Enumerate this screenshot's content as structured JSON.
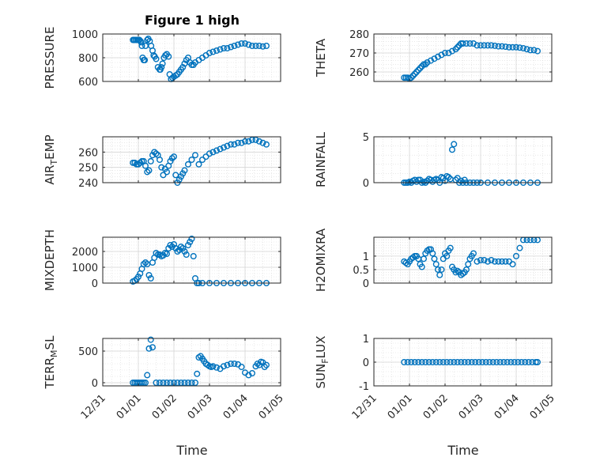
{
  "figure": {
    "title": "Figure 1 high",
    "marker_color": "#0072bd",
    "x_label": "Time"
  },
  "x_ticks": [
    "12/31",
    "01/01",
    "01/02",
    "01/03",
    "01/04",
    "01/05"
  ],
  "chart_data": [
    {
      "type": "scatter",
      "ylabel": "PRESSURE",
      "ylim": [
        600,
        1000
      ],
      "yticks": [
        600,
        800,
        1000
      ],
      "x": [
        0.85,
        0.88,
        0.92,
        0.96,
        1.0,
        1.03,
        1.06,
        1.08,
        1.1,
        1.12,
        1.15,
        1.18,
        1.2,
        1.25,
        1.28,
        1.32,
        1.36,
        1.4,
        1.43,
        1.46,
        1.5,
        1.55,
        1.6,
        1.62,
        1.65,
        1.68,
        1.72,
        1.76,
        1.8,
        1.85,
        1.88,
        1.92,
        1.96,
        2.0,
        2.05,
        2.1,
        2.15,
        2.2,
        2.25,
        2.3,
        2.35,
        2.4,
        2.45,
        2.5,
        2.55,
        2.6,
        2.7,
        2.8,
        2.9,
        3.0,
        3.1,
        3.2,
        3.3,
        3.4,
        3.5,
        3.6,
        3.7,
        3.8,
        3.9,
        4.0,
        4.1,
        4.2,
        4.3,
        4.4,
        4.5,
        4.6
      ],
      "values": [
        950,
        950,
        950,
        950,
        950,
        950,
        940,
        930,
        900,
        800,
        780,
        780,
        900,
        950,
        960,
        940,
        900,
        860,
        820,
        810,
        790,
        720,
        700,
        700,
        720,
        750,
        800,
        820,
        830,
        810,
        660,
        620,
        630,
        640,
        650,
        660,
        680,
        700,
        720,
        750,
        780,
        800,
        760,
        740,
        740,
        760,
        780,
        800,
        820,
        840,
        850,
        860,
        870,
        880,
        880,
        890,
        900,
        910,
        920,
        920,
        910,
        900,
        900,
        900,
        895,
        900
      ]
    },
    {
      "type": "scatter",
      "ylabel": "THETA",
      "ylim": [
        255,
        280
      ],
      "yticks": [
        260,
        270,
        280
      ],
      "x": [
        0.85,
        0.9,
        0.95,
        1.0,
        1.05,
        1.1,
        1.15,
        1.2,
        1.25,
        1.3,
        1.35,
        1.4,
        1.45,
        1.5,
        1.6,
        1.7,
        1.8,
        1.9,
        2.0,
        2.1,
        2.2,
        2.3,
        2.35,
        2.4,
        2.45,
        2.5,
        2.6,
        2.7,
        2.8,
        2.9,
        3.0,
        3.1,
        3.2,
        3.3,
        3.4,
        3.5,
        3.6,
        3.7,
        3.8,
        3.9,
        4.0,
        4.1,
        4.2,
        4.3,
        4.4,
        4.5,
        4.6
      ],
      "values": [
        257,
        257,
        257,
        256.5,
        257,
        258,
        259,
        260,
        261,
        262,
        263,
        264,
        264,
        265,
        266,
        267,
        268,
        269,
        270,
        270,
        271,
        272,
        273,
        274,
        275,
        275,
        275,
        275,
        275,
        274,
        274,
        274,
        274,
        274,
        273.8,
        273.5,
        273.5,
        273.3,
        273,
        273,
        273,
        272.8,
        272.5,
        272,
        271.5,
        271.5,
        271
      ]
    },
    {
      "type": "scatter",
      "ylabel": "AIR_TEMP",
      "ylim": [
        240,
        270
      ],
      "yticks": [
        240,
        250,
        260
      ],
      "x": [
        0.85,
        0.9,
        0.95,
        1.0,
        1.05,
        1.1,
        1.15,
        1.2,
        1.25,
        1.3,
        1.35,
        1.4,
        1.45,
        1.5,
        1.55,
        1.6,
        1.65,
        1.7,
        1.75,
        1.8,
        1.85,
        1.9,
        1.95,
        2.0,
        2.05,
        2.1,
        2.15,
        2.2,
        2.25,
        2.3,
        2.4,
        2.5,
        2.6,
        2.7,
        2.8,
        2.9,
        3.0,
        3.1,
        3.2,
        3.3,
        3.4,
        3.5,
        3.6,
        3.7,
        3.8,
        3.9,
        4.0,
        4.1,
        4.2,
        4.3,
        4.4,
        4.5,
        4.6
      ],
      "values": [
        253,
        253,
        252,
        252,
        253,
        254,
        254,
        251,
        247,
        248,
        254,
        258,
        260,
        259,
        258,
        255,
        250,
        245,
        249,
        247,
        251,
        254,
        256,
        257,
        245,
        240,
        242,
        244,
        246,
        248,
        252,
        255,
        258,
        252,
        255,
        257,
        259,
        260,
        261,
        262,
        263,
        264,
        265,
        265,
        266,
        266,
        267,
        267,
        268,
        268,
        267,
        266,
        265
      ]
    },
    {
      "type": "scatter",
      "ylabel": "RAINFALL",
      "ylim": [
        0,
        5
      ],
      "yticks": [
        0,
        5
      ],
      "x": [
        0.85,
        0.9,
        0.95,
        1.0,
        1.05,
        1.1,
        1.15,
        1.2,
        1.25,
        1.3,
        1.35,
        1.4,
        1.45,
        1.5,
        1.55,
        1.6,
        1.65,
        1.7,
        1.75,
        1.8,
        1.85,
        1.9,
        1.95,
        2.0,
        2.05,
        2.1,
        2.15,
        2.2,
        2.25,
        2.3,
        2.35,
        2.4,
        2.45,
        2.5,
        2.55,
        2.6,
        2.7,
        2.8,
        2.9,
        3.0,
        3.2,
        3.4,
        3.6,
        3.8,
        4.0,
        4.2,
        4.4,
        4.6
      ],
      "values": [
        0,
        0,
        0,
        0.1,
        0,
        0.2,
        0.3,
        0.1,
        0.3,
        0.3,
        0,
        0.1,
        0,
        0.2,
        0.4,
        0.3,
        0.1,
        0.3,
        0.4,
        0.3,
        0,
        0.6,
        0.5,
        0.2,
        0.7,
        0.6,
        0.4,
        3.6,
        4.2,
        0.3,
        0.5,
        0,
        0.2,
        0,
        0.3,
        0,
        0,
        0,
        0,
        0,
        0,
        0,
        0,
        0,
        0,
        0,
        0,
        0
      ]
    },
    {
      "type": "scatter",
      "ylabel": "MIXDEPTH",
      "ylim": [
        0,
        2900
      ],
      "yticks": [
        0,
        1000,
        2000
      ],
      "x": [
        0.85,
        0.9,
        0.95,
        1.0,
        1.05,
        1.1,
        1.15,
        1.2,
        1.25,
        1.3,
        1.35,
        1.4,
        1.45,
        1.5,
        1.55,
        1.6,
        1.65,
        1.7,
        1.75,
        1.8,
        1.85,
        1.9,
        1.95,
        2.0,
        2.05,
        2.1,
        2.15,
        2.2,
        2.25,
        2.3,
        2.35,
        2.4,
        2.45,
        2.5,
        2.55,
        2.6,
        2.65,
        2.7,
        2.8,
        3.0,
        3.2,
        3.4,
        3.6,
        3.8,
        4.0,
        4.2,
        4.4,
        4.6
      ],
      "values": [
        100,
        150,
        250,
        400,
        600,
        900,
        1200,
        1300,
        1200,
        500,
        300,
        1300,
        1600,
        1900,
        1800,
        1800,
        1700,
        1750,
        1900,
        1850,
        2200,
        2400,
        2300,
        2450,
        2200,
        2000,
        2100,
        2300,
        2200,
        2000,
        1800,
        2400,
        2600,
        2800,
        1700,
        300,
        0,
        0,
        0,
        0,
        0,
        0,
        0,
        0,
        0,
        0,
        0,
        0
      ]
    },
    {
      "type": "scatter",
      "ylabel": "H2OMIXRA",
      "ylim": [
        0,
        1.7
      ],
      "yticks": [
        0,
        0.5,
        1
      ],
      "x": [
        0.85,
        0.9,
        0.95,
        1.0,
        1.05,
        1.1,
        1.15,
        1.2,
        1.25,
        1.3,
        1.35,
        1.4,
        1.45,
        1.5,
        1.55,
        1.6,
        1.65,
        1.7,
        1.75,
        1.8,
        1.85,
        1.9,
        1.95,
        2.0,
        2.05,
        2.1,
        2.15,
        2.2,
        2.25,
        2.3,
        2.35,
        2.4,
        2.45,
        2.5,
        2.55,
        2.6,
        2.65,
        2.7,
        2.75,
        2.8,
        2.9,
        3.0,
        3.1,
        3.2,
        3.3,
        3.4,
        3.5,
        3.6,
        3.7,
        3.8,
        3.9,
        4.0,
        4.1,
        4.2,
        4.3,
        4.4,
        4.5,
        4.6
      ],
      "values": [
        0.8,
        0.75,
        0.7,
        0.8,
        0.9,
        0.95,
        1.0,
        1.0,
        0.9,
        0.7,
        0.6,
        0.9,
        1.1,
        1.2,
        1.25,
        1.25,
        1.1,
        0.9,
        0.7,
        0.5,
        0.3,
        0.5,
        0.9,
        1.1,
        1.0,
        1.2,
        1.3,
        0.6,
        0.5,
        0.4,
        0.45,
        0.4,
        0.3,
        0.35,
        0.4,
        0.5,
        0.7,
        0.9,
        1.0,
        1.1,
        0.8,
        0.85,
        0.85,
        0.8,
        0.85,
        0.8,
        0.8,
        0.8,
        0.8,
        0.8,
        0.7,
        1.0,
        1.3,
        1.6,
        1.6,
        1.6,
        1.6,
        1.6
      ]
    },
    {
      "type": "scatter",
      "ylabel": "TERR_MSL",
      "ylim": [
        -50,
        700
      ],
      "yticks": [
        0,
        500
      ],
      "x": [
        0.85,
        0.9,
        0.95,
        1.0,
        1.05,
        1.1,
        1.15,
        1.2,
        1.25,
        1.3,
        1.35,
        1.4,
        1.5,
        1.6,
        1.7,
        1.8,
        1.9,
        2.0,
        2.1,
        2.2,
        2.3,
        2.4,
        2.5,
        2.6,
        2.65,
        2.7,
        2.75,
        2.8,
        2.85,
        2.9,
        2.95,
        3.0,
        3.05,
        3.1,
        3.2,
        3.3,
        3.4,
        3.5,
        3.6,
        3.7,
        3.8,
        3.9,
        4.0,
        4.1,
        4.2,
        4.3,
        4.35,
        4.4,
        4.45,
        4.5,
        4.55,
        4.6
      ],
      "values": [
        0,
        0,
        0,
        0,
        0,
        0,
        0,
        0,
        120,
        540,
        680,
        560,
        0,
        0,
        0,
        0,
        0,
        0,
        0,
        0,
        0,
        0,
        0,
        0,
        140,
        400,
        420,
        380,
        340,
        300,
        280,
        260,
        250,
        260,
        240,
        220,
        260,
        280,
        300,
        300,
        290,
        250,
        160,
        120,
        150,
        260,
        300,
        280,
        330,
        320,
        250,
        280
      ]
    },
    {
      "type": "scatter",
      "ylabel": "SUN_FLUX",
      "ylim": [
        -1,
        1
      ],
      "yticks": [
        -1,
        0,
        1
      ],
      "x": [
        0.85,
        0.95,
        1.05,
        1.15,
        1.25,
        1.35,
        1.45,
        1.55,
        1.65,
        1.75,
        1.85,
        1.95,
        2.05,
        2.15,
        2.25,
        2.35,
        2.45,
        2.55,
        2.65,
        2.75,
        2.85,
        2.95,
        3.05,
        3.15,
        3.25,
        3.35,
        3.45,
        3.55,
        3.65,
        3.75,
        3.85,
        3.95,
        4.05,
        4.15,
        4.25,
        4.35,
        4.45,
        4.55,
        4.6
      ],
      "values": [
        0,
        0,
        0,
        0,
        0,
        0,
        0,
        0,
        0,
        0,
        0,
        0,
        0,
        0,
        0,
        0,
        0,
        0,
        0,
        0,
        0,
        0,
        0,
        0,
        0,
        0,
        0,
        0,
        0,
        0,
        0,
        0,
        0,
        0,
        0,
        0,
        0,
        0,
        0
      ]
    }
  ]
}
